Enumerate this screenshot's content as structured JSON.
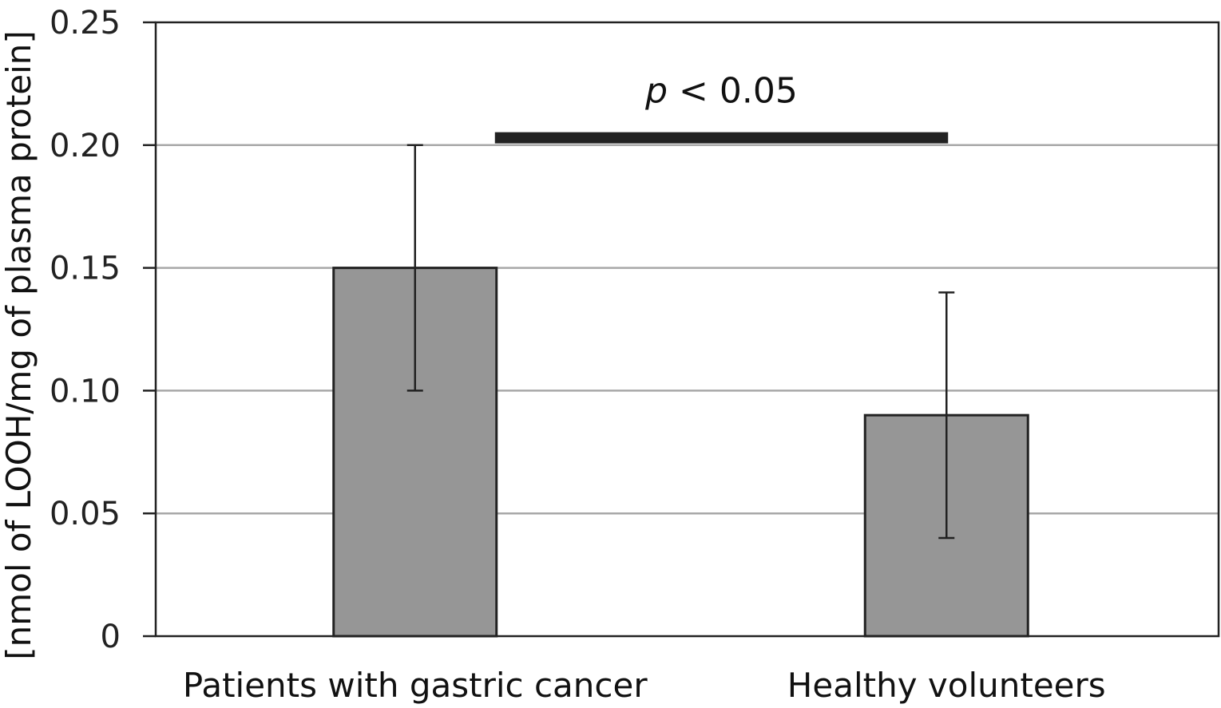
{
  "chart_data": {
    "type": "bar",
    "title": "",
    "xlabel": "",
    "ylabel": "[nmol of LOOH/mg of plasma protein]",
    "categories": [
      "Patients with gastric cancer",
      "Healthy volunteers"
    ],
    "values": [
      0.15,
      0.09
    ],
    "error_low": [
      0.1,
      0.04
    ],
    "error_high": [
      0.2,
      0.14
    ],
    "ylim": [
      0,
      0.25
    ],
    "yticks": [
      0,
      0.05,
      0.1,
      0.15,
      0.2,
      0.25
    ],
    "ytick_labels": [
      "0",
      "0.05",
      "0.10",
      "0.15",
      "0.20",
      "0.25"
    ],
    "grid": true,
    "legend": "none",
    "bar_color": "#969696",
    "annotation": {
      "p_symbol": "p",
      "text": " < 0.05",
      "bracket_from": "Patients with gastric cancer",
      "bracket_to": "Healthy volunteers",
      "bracket_y": 0.203
    }
  }
}
